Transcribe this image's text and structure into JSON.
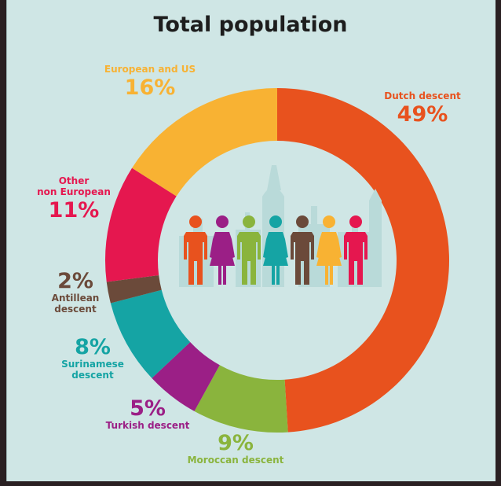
{
  "colors": {
    "background": "#cfe6e5",
    "dutch": "#e8521e",
    "moroccan": "#8ab43d",
    "turkish": "#9b1f86",
    "surinamese": "#15a4a4",
    "antillean": "#6b4a3a",
    "other_non_european": "#e5174f",
    "european_us": "#f8b233",
    "skyline": "#b9dad9"
  },
  "chart_data": {
    "type": "pie",
    "variant": "donut",
    "title": "Total population",
    "unit": "%",
    "slices": [
      {
        "label": "Dutch descent",
        "value": 49,
        "display": "49%",
        "color": "#e8521e"
      },
      {
        "label": "Moroccan descent",
        "value": 9,
        "display": "9%",
        "color": "#8ab43d"
      },
      {
        "label": "Turkish descent",
        "value": 5,
        "display": "5%",
        "color": "#9b1f86"
      },
      {
        "label_lines": [
          "Surinamese",
          "descent"
        ],
        "value": 8,
        "display": "8%",
        "color": "#15a4a4"
      },
      {
        "label_lines": [
          "Antillean",
          "descent"
        ],
        "value": 2,
        "display": "2%",
        "color": "#6b4a3a"
      },
      {
        "label_lines": [
          "Other",
          "non European"
        ],
        "value": 11,
        "display": "11%",
        "color": "#e5174f"
      },
      {
        "label": "European and US",
        "value": 16,
        "display": "16%",
        "color": "#f8b233"
      }
    ],
    "legend": "none",
    "labels_position": "outside"
  },
  "figures": [
    {
      "icon": "man-icon",
      "color": "#e8521e"
    },
    {
      "icon": "woman-icon",
      "color": "#9b1f86"
    },
    {
      "icon": "man-icon",
      "color": "#8ab43d"
    },
    {
      "icon": "woman-icon",
      "color": "#15a4a4"
    },
    {
      "icon": "man-icon",
      "color": "#6b4a3a"
    },
    {
      "icon": "woman-icon",
      "color": "#f8b233"
    },
    {
      "icon": "man-icon",
      "color": "#e5174f"
    }
  ]
}
